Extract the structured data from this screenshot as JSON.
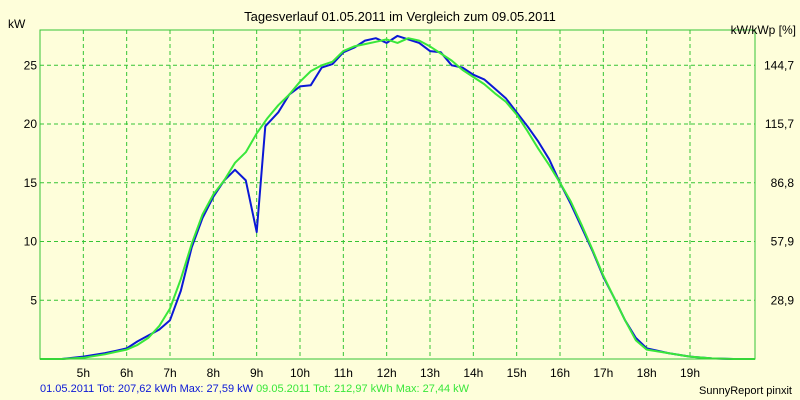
{
  "title": "Tagesverlauf 01.05.2011 im Vergleich zum 09.05.2011",
  "ylabel_left": "kW",
  "ylabel_right": "kW/kWp [%]",
  "footer": {
    "series1_text": "01.05.2011 Tot: 207,62 kWh Max: 27,59 kW",
    "series2_text": "09.05.2011 Tot: 212,97 kWh Max: 27,44 kW",
    "brand": "SunnyReport pinxit"
  },
  "colors": {
    "background": "#fefeda",
    "grid": "#35c435",
    "series1": "#0b18d6",
    "series2": "#39e73a"
  },
  "chart_data": {
    "type": "line",
    "title": "Tagesverlauf 01.05.2011 im Vergleich zum 09.05.2011",
    "xlabel": "",
    "ylabel": "kW",
    "y2label": "kW/kWp [%]",
    "xlim": [
      4.0,
      20.5
    ],
    "ylim": [
      0,
      28
    ],
    "x_ticks": [
      5,
      6,
      7,
      8,
      9,
      10,
      11,
      12,
      13,
      14,
      15,
      16,
      17,
      18,
      19
    ],
    "x_tick_labels": [
      "5h",
      "6h",
      "7h",
      "8h",
      "9h",
      "10h",
      "11h",
      "12h",
      "13h",
      "14h",
      "15h",
      "16h",
      "17h",
      "18h",
      "19h"
    ],
    "y_ticks": [
      5,
      10,
      15,
      20,
      25
    ],
    "y_tick_labels": [
      "5",
      "10",
      "15",
      "20",
      "25"
    ],
    "y2_tick_labels": [
      "28,9",
      "57,9",
      "86,8",
      "115,7",
      "144,7"
    ],
    "grid": true,
    "legend": "none",
    "series": [
      {
        "name": "01.05.2011",
        "color": "#0b18d6",
        "x": [
          4.0,
          4.5,
          5.0,
          5.5,
          5.75,
          6.0,
          6.25,
          6.5,
          6.75,
          7.0,
          7.25,
          7.5,
          7.75,
          8.0,
          8.25,
          8.5,
          8.75,
          9.0,
          9.2,
          9.5,
          9.75,
          10.0,
          10.25,
          10.5,
          10.75,
          11.0,
          11.25,
          11.5,
          11.75,
          12.0,
          12.25,
          12.5,
          12.75,
          13.0,
          13.25,
          13.5,
          13.75,
          14.0,
          14.25,
          14.5,
          14.75,
          15.0,
          15.25,
          15.5,
          15.75,
          16.0,
          16.25,
          16.5,
          16.75,
          17.0,
          17.25,
          17.5,
          17.75,
          18.0,
          18.5,
          19.0,
          19.5,
          20.0,
          20.5
        ],
        "y": [
          0,
          0,
          0.2,
          0.5,
          0.7,
          0.9,
          1.5,
          2.0,
          2.5,
          3.3,
          5.8,
          9.5,
          12.0,
          13.8,
          15.2,
          16.1,
          15.2,
          10.8,
          19.8,
          21.0,
          22.5,
          23.2,
          23.3,
          24.8,
          25.1,
          26.1,
          26.5,
          27.1,
          27.3,
          26.9,
          27.5,
          27.2,
          26.9,
          26.2,
          26.1,
          25.0,
          24.8,
          24.2,
          23.8,
          23.0,
          22.2,
          21.0,
          19.8,
          18.5,
          17.0,
          15.0,
          13.2,
          11.2,
          9.2,
          7.0,
          5.2,
          3.3,
          1.8,
          0.9,
          0.5,
          0.2,
          0.05,
          0,
          0
        ]
      },
      {
        "name": "09.05.2011",
        "color": "#39e73a",
        "x": [
          4.0,
          4.5,
          5.0,
          5.5,
          5.75,
          6.0,
          6.25,
          6.5,
          6.75,
          7.0,
          7.25,
          7.5,
          7.75,
          8.0,
          8.25,
          8.5,
          8.75,
          9.0,
          9.25,
          9.5,
          9.75,
          10.0,
          10.25,
          10.5,
          10.75,
          11.0,
          11.25,
          11.5,
          11.75,
          12.0,
          12.25,
          12.5,
          12.75,
          13.0,
          13.25,
          13.5,
          13.75,
          14.0,
          14.25,
          14.5,
          14.75,
          15.0,
          15.25,
          15.5,
          15.75,
          16.0,
          16.25,
          16.5,
          16.75,
          17.0,
          17.25,
          17.5,
          17.75,
          18.0,
          18.5,
          19.0,
          19.5,
          20.0,
          20.5
        ],
        "y": [
          0,
          0,
          0.1,
          0.4,
          0.6,
          0.8,
          1.2,
          1.8,
          2.8,
          4.3,
          6.8,
          9.8,
          12.3,
          14.0,
          15.2,
          16.7,
          17.6,
          19.2,
          20.5,
          21.6,
          22.5,
          23.6,
          24.5,
          25.0,
          25.3,
          26.2,
          26.6,
          26.8,
          27.0,
          27.2,
          26.9,
          27.3,
          27.1,
          26.6,
          26.0,
          25.4,
          24.6,
          24.0,
          23.4,
          22.6,
          21.9,
          20.8,
          19.4,
          17.9,
          16.5,
          15.0,
          13.4,
          11.4,
          9.3,
          7.1,
          5.2,
          3.3,
          1.6,
          0.8,
          0.5,
          0.2,
          0.05,
          0,
          0
        ]
      }
    ]
  }
}
